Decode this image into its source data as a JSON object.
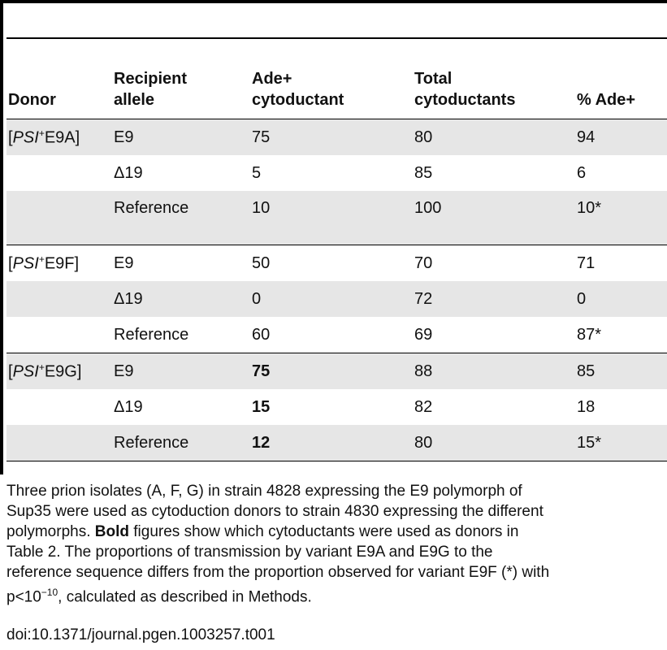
{
  "table": {
    "headers": [
      [
        "Donor"
      ],
      [
        "Recipient",
        "allele"
      ],
      [
        "Ade+",
        "cytoductant"
      ],
      [
        "Total",
        "cytoductants"
      ],
      [
        "% Ade+"
      ]
    ],
    "groups": [
      {
        "donor_prefix": "[",
        "donor_italic": "PSI",
        "donor_sup": "+",
        "donor_suffix": "E9A]",
        "rows": [
          {
            "allele": "E9",
            "ade": "75",
            "total": "80",
            "pct": "94",
            "bold": false,
            "shade": true
          },
          {
            "allele": "Δ19",
            "ade": "5",
            "total": "85",
            "pct": "6",
            "bold": false,
            "shade": false
          },
          {
            "allele": "Reference",
            "ade": "10",
            "total": "100",
            "pct": "10*",
            "bold": false,
            "shade": true
          }
        ]
      },
      {
        "donor_prefix": "[",
        "donor_italic": "PSI",
        "donor_sup": "+",
        "donor_suffix": "E9F]",
        "rows": [
          {
            "allele": "E9",
            "ade": "50",
            "total": "70",
            "pct": "71",
            "bold": false,
            "shade": false
          },
          {
            "allele": "Δ19",
            "ade": "0",
            "total": "72",
            "pct": "0",
            "bold": false,
            "shade": true
          },
          {
            "allele": "Reference",
            "ade": "60",
            "total": "69",
            "pct": "87*",
            "bold": false,
            "shade": false
          }
        ]
      },
      {
        "donor_prefix": "[",
        "donor_italic": "PSI",
        "donor_sup": "+",
        "donor_suffix": "E9G]",
        "rows": [
          {
            "allele": "E9",
            "ade": "75",
            "total": "88",
            "pct": "85",
            "bold": true,
            "shade": true
          },
          {
            "allele": "Δ19",
            "ade": "15",
            "total": "82",
            "pct": "18",
            "bold": true,
            "shade": false
          },
          {
            "allele": "Reference",
            "ade": "12",
            "total": "80",
            "pct": "15*",
            "bold": true,
            "shade": true
          }
        ]
      }
    ]
  },
  "footnote": {
    "lines": [
      [
        "Three prion isolates (A, F, G) in strain 4828 expressing the E9 polymorph of"
      ],
      [
        "Sup35 were used as cytoduction donors to strain 4830 expressing the different"
      ],
      [
        "polymorphs. ",
        {
          "bold": "Bold"
        },
        " figures show which cytoductants were used as donors in"
      ],
      [
        "Table 2. The proportions of transmission by variant E9A and E9G to the"
      ],
      [
        "reference sequence differs from the proportion observed for variant E9F (*) with"
      ],
      [
        "p<10",
        {
          "sup": "−10"
        },
        ", calculated as described in Methods."
      ]
    ],
    "doi": "doi:10.1371/journal.pgen.1003257.t001"
  }
}
